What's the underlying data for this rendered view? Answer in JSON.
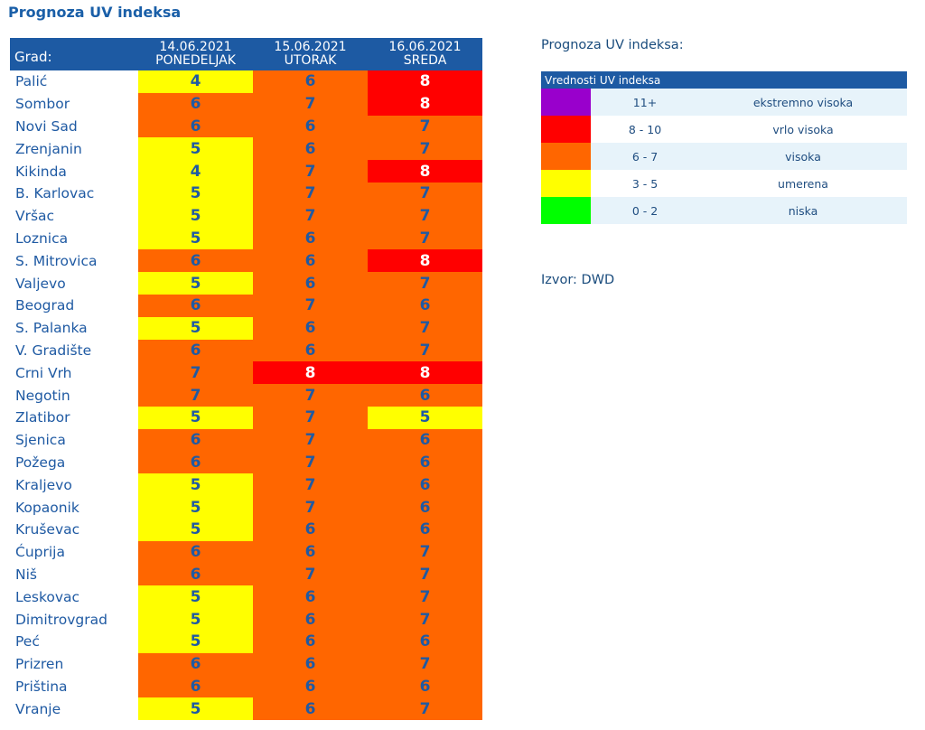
{
  "title": "Prognoza UV indeksa",
  "table": {
    "city_header": "Grad:",
    "days": [
      {
        "date": "14.06.2021",
        "day": "PONEDELJAK"
      },
      {
        "date": "15.06.2021",
        "day": "UTORAK"
      },
      {
        "date": "16.06.2021",
        "day": "SREDA"
      }
    ],
    "rows": [
      {
        "city": "Palić",
        "values": [
          "4",
          "6",
          "8"
        ]
      },
      {
        "city": "Sombor",
        "values": [
          "6",
          "7",
          "8"
        ]
      },
      {
        "city": "Novi Sad",
        "values": [
          "6",
          "6",
          "7"
        ]
      },
      {
        "city": "Zrenjanin",
        "values": [
          "5",
          "6",
          "7"
        ]
      },
      {
        "city": "Kikinda",
        "values": [
          "4",
          "7",
          "8"
        ]
      },
      {
        "city": "B. Karlovac",
        "values": [
          "5",
          "7",
          "7"
        ]
      },
      {
        "city": "Vršac",
        "values": [
          "5",
          "7",
          "7"
        ]
      },
      {
        "city": "Loznica",
        "values": [
          "5",
          "6",
          "7"
        ]
      },
      {
        "city": "S. Mitrovica",
        "values": [
          "6",
          "6",
          "8"
        ]
      },
      {
        "city": "Valjevo",
        "values": [
          "5",
          "6",
          "7"
        ]
      },
      {
        "city": "Beograd",
        "values": [
          "6",
          "7",
          "6"
        ]
      },
      {
        "city": "S. Palanka",
        "values": [
          "5",
          "6",
          "7"
        ]
      },
      {
        "city": "V. Gradište",
        "values": [
          "6",
          "6",
          "7"
        ]
      },
      {
        "city": "Crni Vrh",
        "values": [
          "7",
          "8",
          "8"
        ]
      },
      {
        "city": "Negotin",
        "values": [
          "7",
          "7",
          "6"
        ]
      },
      {
        "city": "Zlatibor",
        "values": [
          "5",
          "7",
          "5"
        ]
      },
      {
        "city": "Sjenica",
        "values": [
          "6",
          "7",
          "6"
        ]
      },
      {
        "city": "Požega",
        "values": [
          "6",
          "7",
          "6"
        ]
      },
      {
        "city": "Kraljevo",
        "values": [
          "5",
          "7",
          "6"
        ]
      },
      {
        "city": "Kopaonik",
        "values": [
          "5",
          "7",
          "6"
        ]
      },
      {
        "city": "Kruševac",
        "values": [
          "5",
          "6",
          "6"
        ]
      },
      {
        "city": "Ćuprija",
        "values": [
          "6",
          "6",
          "7"
        ]
      },
      {
        "city": "Niš",
        "values": [
          "6",
          "7",
          "7"
        ]
      },
      {
        "city": "Leskovac",
        "values": [
          "5",
          "6",
          "7"
        ]
      },
      {
        "city": "Dimitrovgrad",
        "values": [
          "5",
          "6",
          "7"
        ]
      },
      {
        "city": "Peć",
        "values": [
          "5",
          "6",
          "6"
        ]
      },
      {
        "city": "Prizren",
        "values": [
          "6",
          "6",
          "7"
        ]
      },
      {
        "city": "Priština",
        "values": [
          "6",
          "6",
          "6"
        ]
      },
      {
        "city": "Vranje",
        "values": [
          "5",
          "6",
          "7"
        ]
      }
    ]
  },
  "legend": {
    "heading": "Prognoza UV indeksa:",
    "table_title": "Vrednosti UV indeksa",
    "items": [
      {
        "range": "11+",
        "label": "ekstremno visoka",
        "color": "#9900cc"
      },
      {
        "range": "8 - 10",
        "label": "vrlo visoka",
        "color": "#ff0000"
      },
      {
        "range": "6 - 7",
        "label": "visoka",
        "color": "#ff6600"
      },
      {
        "range": "3 - 5",
        "label": "umerena",
        "color": "#ffff00"
      },
      {
        "range": "0 - 2",
        "label": "niska",
        "color": "#00ff00"
      }
    ]
  },
  "source": "Izvor: DWD",
  "colors": {
    "header_bg": "#1d5aa3",
    "city_text": "#1f5aa3",
    "value_dark": "#1f5aa3",
    "value_light": "#ffffff",
    "low": "#ffff00",
    "high": "#ff6600",
    "very_high": "#ff0000"
  }
}
